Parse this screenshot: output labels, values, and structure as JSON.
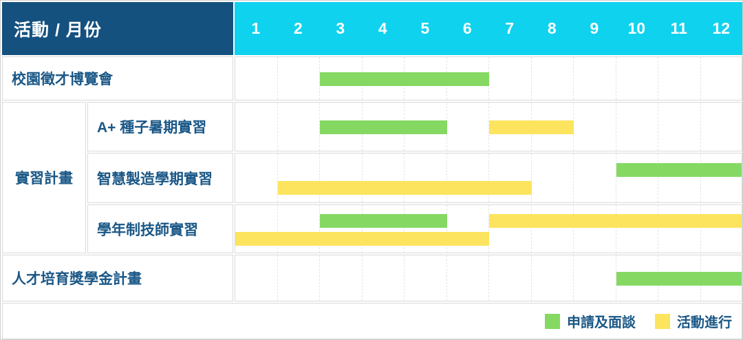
{
  "header": {
    "title": "活動 / 月份",
    "months": [
      "1",
      "2",
      "3",
      "4",
      "5",
      "6",
      "7",
      "8",
      "9",
      "10",
      "11",
      "12"
    ]
  },
  "legend": {
    "items": [
      {
        "key": "apply",
        "label": "申請及面談",
        "color": "#85d962"
      },
      {
        "key": "active",
        "label": "活動進行",
        "color": "#fde45e"
      }
    ]
  },
  "colors": {
    "header_bg": "#14517f",
    "month_header_bg": "#0fd2ee",
    "apply_green": "#85d962",
    "active_yellow": "#fde45e",
    "label_text": "#1a5786",
    "grid_border": "#d9d9d9",
    "gridline_dashed": "#e4e4e4"
  },
  "chart_data": {
    "type": "bar",
    "variant": "gantt",
    "title": "活動 / 月份",
    "x_unit": "month",
    "x_ticks": [
      1,
      2,
      3,
      4,
      5,
      6,
      7,
      8,
      9,
      10,
      11,
      12
    ],
    "x_range": [
      1,
      12
    ],
    "series_types": {
      "apply": "申請及面談",
      "active": "活動進行"
    },
    "legend_position": "bottom-right",
    "rows": [
      {
        "group": "",
        "label": "校園徵才博覽會",
        "lanes": [
          [
            {
              "type": "apply",
              "start_month": 3,
              "end_month": 6
            }
          ]
        ]
      },
      {
        "group": "實習計畫",
        "label": "A+ 種子暑期實習",
        "lanes": [
          [
            {
              "type": "apply",
              "start_month": 3,
              "end_month": 5
            },
            {
              "type": "active",
              "start_month": 7,
              "end_month": 8
            }
          ]
        ]
      },
      {
        "group": "實習計畫",
        "label": "智慧製造學期實習",
        "lanes": [
          [
            {
              "type": "apply",
              "start_month": 10,
              "end_month": 12
            }
          ],
          [
            {
              "type": "active",
              "start_month": 2,
              "end_month": 7
            }
          ]
        ]
      },
      {
        "group": "實習計畫",
        "label": "學年制技師實習",
        "lanes": [
          [
            {
              "type": "apply",
              "start_month": 3,
              "end_month": 5
            },
            {
              "type": "active",
              "start_month": 7,
              "end_month": 12
            }
          ],
          [
            {
              "type": "active",
              "start_month": 1,
              "end_month": 6
            }
          ]
        ]
      },
      {
        "group": "",
        "label": "人才培育獎學金計畫",
        "lanes": [
          [
            {
              "type": "apply",
              "start_month": 10,
              "end_month": 12
            }
          ]
        ]
      }
    ]
  }
}
